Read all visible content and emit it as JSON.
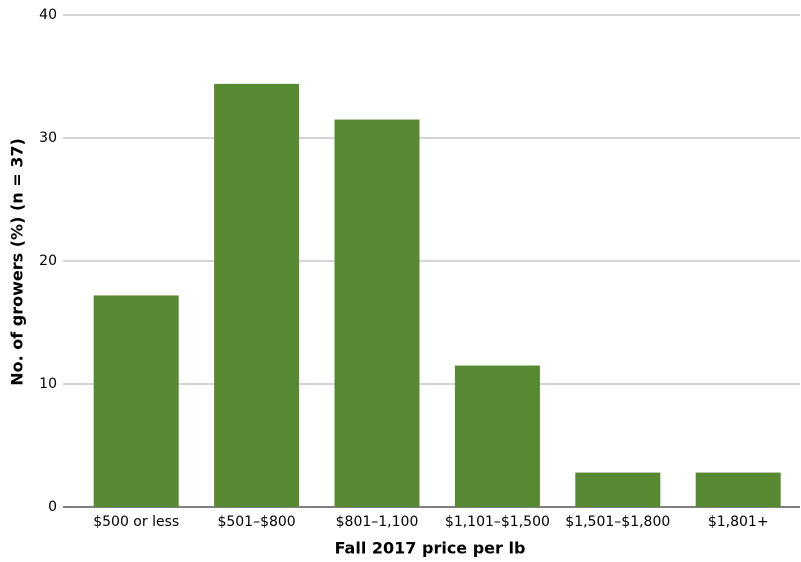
{
  "chart_data": {
    "type": "bar",
    "x_label": "Fall 2017 price per lb",
    "y_label": "No. of growers (%) (n = 37)",
    "categories": [
      "$500 or less",
      "$501–$800",
      "$801–1,100",
      "$1,101–$1,500",
      "$1,501–$1,800",
      "$1,801+"
    ],
    "values": [
      17.2,
      34.4,
      31.5,
      11.5,
      2.8,
      2.8
    ],
    "color": "#578a33",
    "ylim": [
      0,
      40
    ],
    "yticks": [
      0,
      10,
      20,
      30,
      40
    ],
    "grid": true
  }
}
